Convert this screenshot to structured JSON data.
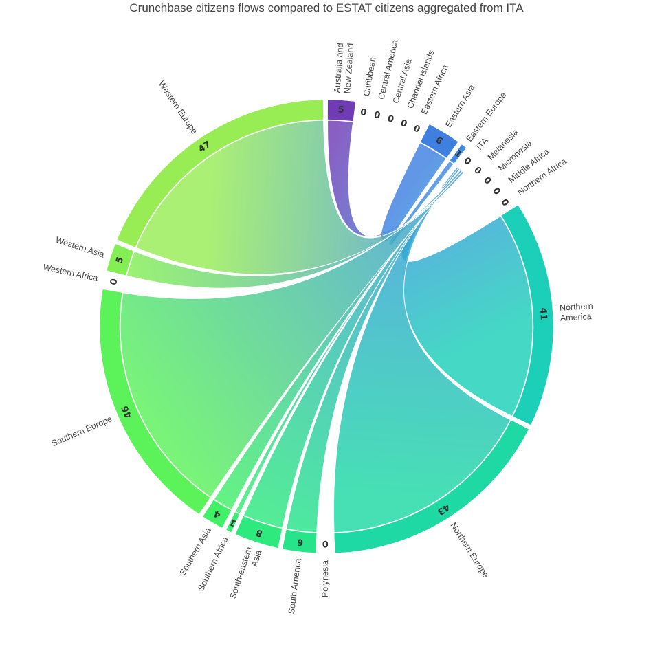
{
  "chart_data": {
    "type": "chord",
    "title": "Crunchbase citizens flows compared to ESTAT citizens aggregated from ITA",
    "source": "ITA",
    "regions": [
      {
        "name": "Australia and New Zealand",
        "label_lines": [
          "Australia and",
          "New Zealand"
        ],
        "value": 5,
        "color": "#6f3cb5"
      },
      {
        "name": "Caribbean",
        "label_lines": [
          "Caribbean"
        ],
        "value": 0,
        "color": "#5a5fc8"
      },
      {
        "name": "Central America",
        "label_lines": [
          "Central America"
        ],
        "value": 0,
        "color": "#5568cc"
      },
      {
        "name": "Central Asia",
        "label_lines": [
          "Central Asia"
        ],
        "value": 0,
        "color": "#4f72d2"
      },
      {
        "name": "Channel Islands",
        "label_lines": [
          "Channel Islands"
        ],
        "value": 0,
        "color": "#4a7cd8"
      },
      {
        "name": "Eastern Africa",
        "label_lines": [
          "Eastern Africa"
        ],
        "value": 0,
        "color": "#4584dc"
      },
      {
        "name": "Eastern Asia",
        "label_lines": [
          "Eastern Asia"
        ],
        "value": 6,
        "color": "#3f7fe0"
      },
      {
        "name": "Eastern Europe",
        "label_lines": [
          "Eastern Europe"
        ],
        "value": 1,
        "color": "#3f8ae2"
      },
      {
        "name": "ITA",
        "label_lines": [
          "ITA"
        ],
        "value": 0,
        "color": "#3a95e0"
      },
      {
        "name": "Melanesia",
        "label_lines": [
          "Melanesia"
        ],
        "value": 0,
        "color": "#369ddd"
      },
      {
        "name": "Micronesia",
        "label_lines": [
          "Micronesia"
        ],
        "value": 0,
        "color": "#32a6d9"
      },
      {
        "name": "Middle Africa",
        "label_lines": [
          "Middle Africa"
        ],
        "value": 0,
        "color": "#2eaed4"
      },
      {
        "name": "Northern Africa",
        "label_lines": [
          "Northern Africa"
        ],
        "value": 0,
        "color": "#2ab6cf"
      },
      {
        "name": "Northern America",
        "label_lines": [
          "Northern",
          "America"
        ],
        "value": 41,
        "color": "#1ccfb8"
      },
      {
        "name": "Northern Europe",
        "label_lines": [
          "Northern Europe"
        ],
        "value": 43,
        "color": "#1ed9a4"
      },
      {
        "name": "Polynesia",
        "label_lines": [
          "Polynesia"
        ],
        "value": 0,
        "color": "#22dd95"
      },
      {
        "name": "South America",
        "label_lines": [
          "South America"
        ],
        "value": 6,
        "color": "#27e38a"
      },
      {
        "name": "South-eastern Asia",
        "label_lines": [
          "South-eastern",
          "Asia"
        ],
        "value": 8,
        "color": "#2ee97e"
      },
      {
        "name": "Southern Africa",
        "label_lines": [
          "Southern Africa"
        ],
        "value": 1,
        "color": "#38ed72"
      },
      {
        "name": "Southern Asia",
        "label_lines": [
          "Southern Asia"
        ],
        "value": 4,
        "color": "#42f068"
      },
      {
        "name": "Southern Europe",
        "label_lines": [
          "Southern Europe"
        ],
        "value": 46,
        "color": "#5cf25a"
      },
      {
        "name": "Western Africa",
        "label_lines": [
          "Western Africa"
        ],
        "value": 0,
        "color": "#78f058"
      },
      {
        "name": "Western Asia",
        "label_lines": [
          "Western Asia"
        ],
        "value": 5,
        "color": "#84ee55"
      },
      {
        "name": "Western Europe",
        "label_lines": [
          "Western Europe"
        ],
        "value": 47,
        "color": "#98ed55"
      }
    ]
  }
}
